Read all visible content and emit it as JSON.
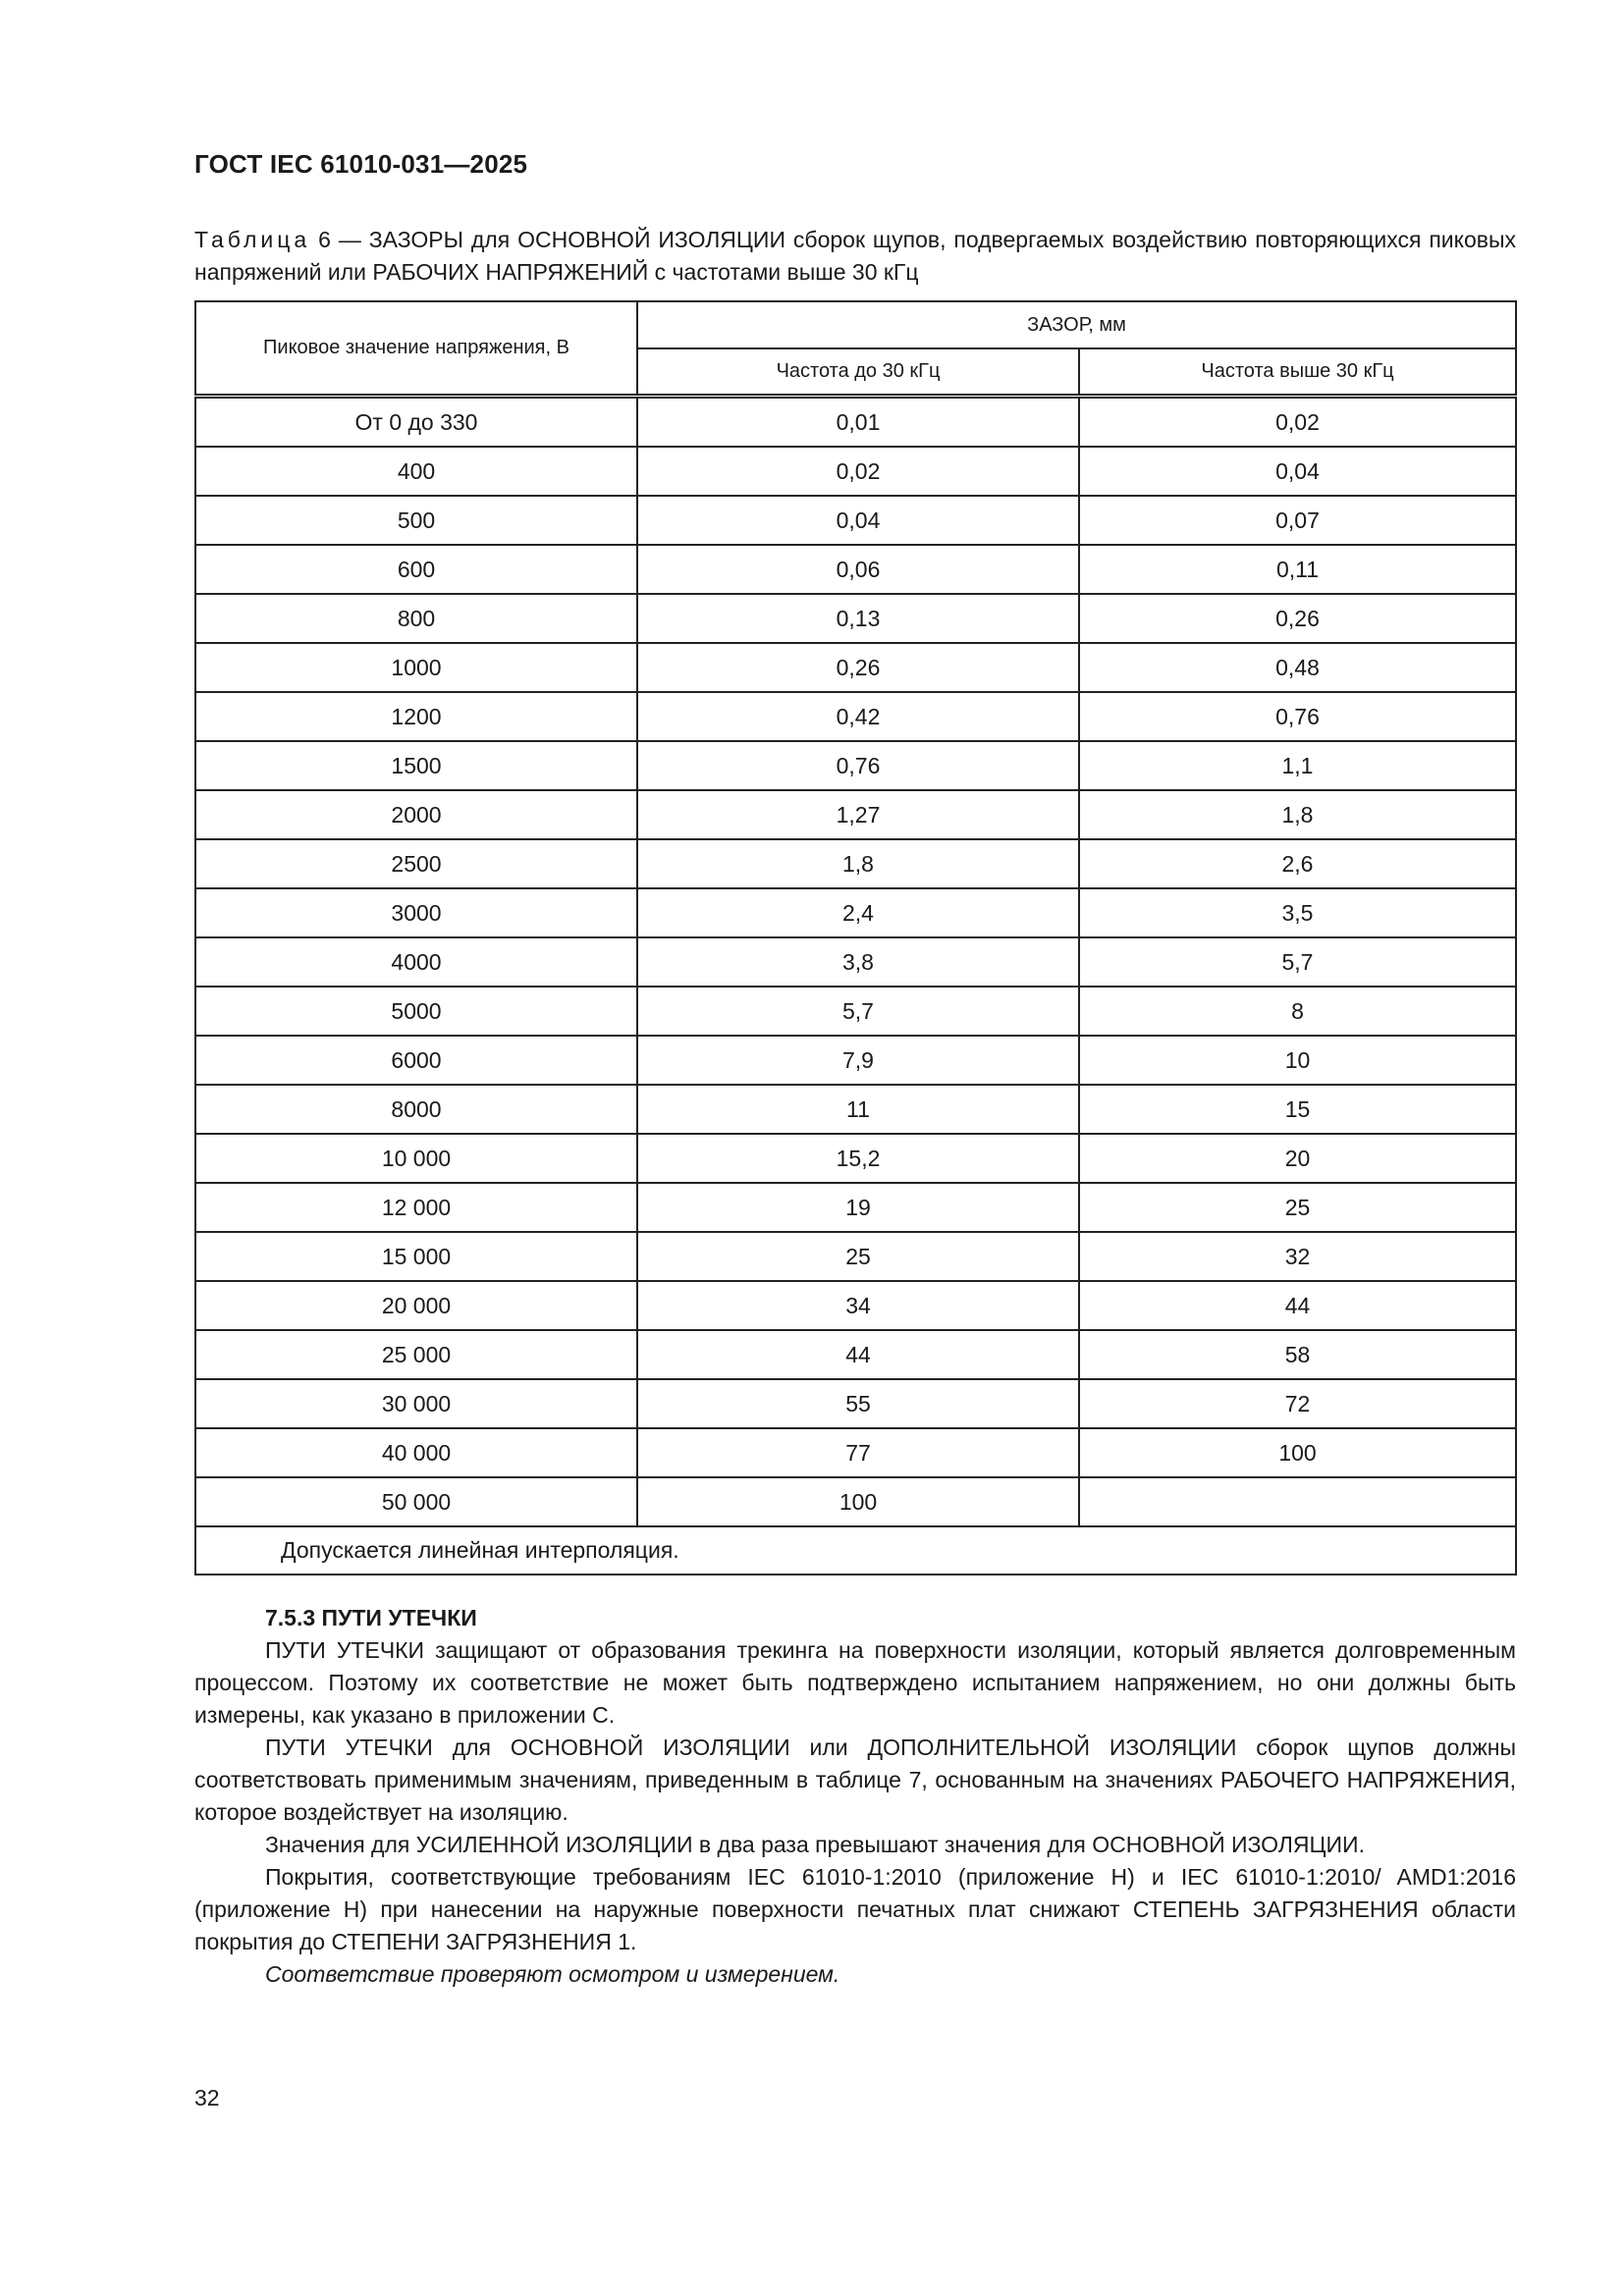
{
  "header": {
    "doc_id": "ГОСТ IEC 61010-031—2025"
  },
  "table": {
    "label": "Таблица",
    "caption": "6 — ЗАЗОРЫ для ОСНОВНОЙ ИЗОЛЯЦИИ сборок щупов, подвергаемых воздействию повторяющихся пиковых напряжений или РАБОЧИХ НАПРЯЖЕНИЙ с частотами выше 30 кГц",
    "col_voltage": "Пиковое значение напряжения, В",
    "col_group": "ЗАЗОР, мм",
    "col_low": "Частота до 30 кГц",
    "col_high": "Частота выше 30 кГц",
    "rows": [
      [
        "От 0 до 330",
        "0,01",
        "0,02"
      ],
      [
        "400",
        "0,02",
        "0,04"
      ],
      [
        "500",
        "0,04",
        "0,07"
      ],
      [
        "600",
        "0,06",
        "0,11"
      ],
      [
        "800",
        "0,13",
        "0,26"
      ],
      [
        "1000",
        "0,26",
        "0,48"
      ],
      [
        "1200",
        "0,42",
        "0,76"
      ],
      [
        "1500",
        "0,76",
        "1,1"
      ],
      [
        "2000",
        "1,27",
        "1,8"
      ],
      [
        "2500",
        "1,8",
        "2,6"
      ],
      [
        "3000",
        "2,4",
        "3,5"
      ],
      [
        "4000",
        "3,8",
        "5,7"
      ],
      [
        "5000",
        "5,7",
        "8"
      ],
      [
        "6000",
        "7,9",
        "10"
      ],
      [
        "8000",
        "11",
        "15"
      ],
      [
        "10 000",
        "15,2",
        "20"
      ],
      [
        "12 000",
        "19",
        "25"
      ],
      [
        "15 000",
        "25",
        "32"
      ],
      [
        "20 000",
        "34",
        "44"
      ],
      [
        "25 000",
        "44",
        "58"
      ],
      [
        "30 000",
        "55",
        "72"
      ],
      [
        "40 000",
        "77",
        "100"
      ],
      [
        "50 000",
        "100",
        ""
      ]
    ],
    "note": "Допускается линейная интерполяция."
  },
  "section": {
    "heading": "7.5.3 ПУТИ УТЕЧКИ",
    "paragraphs": [
      "ПУТИ УТЕЧКИ защищают от образования трекинга на поверхности изоляции, который является долговременным процессом. Поэтому их соответствие не может быть подтверждено испытанием напряжением, но они должны быть измерены, как указано в приложении С.",
      "ПУТИ УТЕЧКИ для ОСНОВНОЙ ИЗОЛЯЦИИ или ДОПОЛНИТЕЛЬНОЙ ИЗОЛЯЦИИ сборок щупов должны соответствовать применимым значениям, приведенным в таблице 7, основанным на значениях РАБОЧЕГО НАПРЯЖЕНИЯ, которое воздействует на изоляцию.",
      "Значения для УСИЛЕННОЙ ИЗОЛЯЦИИ в два раза превышают значения для ОСНОВНОЙ ИЗОЛЯЦИИ.",
      "Покрытия, соответствующие требованиям IEC 61010-1:2010 (приложение Н) и IEC 61010-1:2010/ AMD1:2016 (приложение Н) при нанесении на наружные поверхности печатных плат снижают СТЕПЕНЬ ЗАГРЯЗНЕНИЯ области покрытия до СТЕПЕНИ ЗАГРЯЗНЕНИЯ 1."
    ],
    "compliance": "Соответствие проверяют осмотром и измерением."
  },
  "footer": {
    "page_number": "32"
  }
}
